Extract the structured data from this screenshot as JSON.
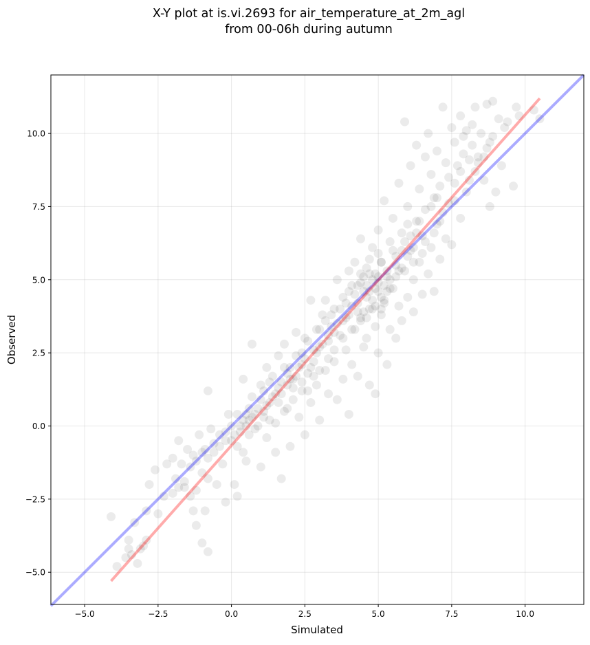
{
  "chart_data": {
    "type": "scatter",
    "title_lines": [
      "X-Y plot at is.vi.2693 for air_temperature_at_2m_agl",
      "from 00-06h during autumn"
    ],
    "xlabel": "Simulated",
    "ylabel": "Observed",
    "xlim": [
      -6.15,
      12.0
    ],
    "ylim": [
      -6.1,
      12.0
    ],
    "x_ticks": [
      -5.0,
      -2.5,
      0.0,
      2.5,
      5.0,
      7.5,
      10.0
    ],
    "x_tick_labels": [
      "−5.0",
      "−2.5",
      "0.0",
      "2.5",
      "5.0",
      "7.5",
      "10.0"
    ],
    "y_ticks": [
      -5.0,
      -2.5,
      0.0,
      2.5,
      5.0,
      7.5,
      10.0
    ],
    "y_tick_labels": [
      "−5.0",
      "−2.5",
      "0.0",
      "2.5",
      "5.0",
      "7.5",
      "10.0"
    ],
    "grid": true,
    "point_color": "#000000",
    "identity_line": {
      "x": [
        -6.15,
        12.0
      ],
      "y": [
        -6.15,
        12.0
      ],
      "color": "#0000ff"
    },
    "regression_line": {
      "x": [
        -4.1,
        10.5
      ],
      "y": [
        -5.3,
        11.2
      ],
      "color": "#ff0000"
    },
    "points": [
      [
        -4.1,
        -3.1
      ],
      [
        -3.9,
        -4.8
      ],
      [
        -3.6,
        -4.5
      ],
      [
        -3.5,
        -3.9
      ],
      [
        -3.5,
        -4.2
      ],
      [
        -3.4,
        -4.4
      ],
      [
        -3.2,
        -4.7
      ],
      [
        -3.1,
        -4.2
      ],
      [
        -3.0,
        -4.1
      ],
      [
        -2.9,
        -3.9
      ],
      [
        -3.3,
        -3.3
      ],
      [
        -2.9,
        -2.9
      ],
      [
        -2.8,
        -2.0
      ],
      [
        -2.6,
        -1.5
      ],
      [
        -2.5,
        -3.0
      ],
      [
        -2.2,
        -1.3
      ],
      [
        -2.0,
        -1.1
      ],
      [
        -1.9,
        -1.8
      ],
      [
        -1.8,
        -0.5
      ],
      [
        -1.7,
        -1.3
      ],
      [
        -1.6,
        -2.1
      ],
      [
        -1.5,
        -0.8
      ],
      [
        -1.4,
        -2.4
      ],
      [
        -1.3,
        -2.9
      ],
      [
        -1.3,
        -1.0
      ],
      [
        -1.2,
        -3.4
      ],
      [
        -1.2,
        -2.2
      ],
      [
        -1.1,
        -0.3
      ],
      [
        -1.0,
        -1.6
      ],
      [
        -1.0,
        -4.0
      ],
      [
        -0.9,
        -0.8
      ],
      [
        -0.9,
        -2.9
      ],
      [
        -0.8,
        -1.8
      ],
      [
        -0.8,
        1.2
      ],
      [
        -0.8,
        -4.3
      ],
      [
        -0.7,
        -0.1
      ],
      [
        -0.6,
        -0.6
      ],
      [
        -0.5,
        -2.0
      ],
      [
        -0.4,
        -0.3
      ],
      [
        -0.3,
        -1.3
      ],
      [
        -0.2,
        -2.6
      ],
      [
        -0.1,
        0.4
      ],
      [
        0.0,
        -0.5
      ],
      [
        0.1,
        -2.0
      ],
      [
        0.2,
        -0.7
      ],
      [
        0.2,
        -2.4
      ],
      [
        0.3,
        0.0
      ],
      [
        0.4,
        -0.9
      ],
      [
        0.4,
        1.6
      ],
      [
        0.5,
        -1.2
      ],
      [
        0.6,
        0.2
      ],
      [
        0.6,
        -0.3
      ],
      [
        0.7,
        1.0
      ],
      [
        0.7,
        2.8
      ],
      [
        0.8,
        -0.1
      ],
      [
        0.9,
        0.6
      ],
      [
        1.0,
        -1.4
      ],
      [
        1.0,
        1.4
      ],
      [
        1.1,
        0.3
      ],
      [
        1.2,
        2.0
      ],
      [
        1.2,
        -0.4
      ],
      [
        1.3,
        0.8
      ],
      [
        1.4,
        1.7
      ],
      [
        1.5,
        0.1
      ],
      [
        1.5,
        -0.9
      ],
      [
        1.6,
        2.4
      ],
      [
        1.7,
        1.1
      ],
      [
        1.7,
        -1.8
      ],
      [
        1.8,
        0.5
      ],
      [
        1.8,
        2.8
      ],
      [
        1.9,
        1.4
      ],
      [
        2.0,
        -0.7
      ],
      [
        2.0,
        2.0
      ],
      [
        2.1,
        0.9
      ],
      [
        2.2,
        3.2
      ],
      [
        2.2,
        1.7
      ],
      [
        2.3,
        0.3
      ],
      [
        2.4,
        2.5
      ],
      [
        2.4,
        1.2
      ],
      [
        2.5,
        3.0
      ],
      [
        2.5,
        -0.3
      ],
      [
        2.6,
        1.8
      ],
      [
        2.7,
        0.8
      ],
      [
        2.7,
        4.3
      ],
      [
        2.8,
        2.2
      ],
      [
        2.9,
        3.3
      ],
      [
        2.9,
        1.4
      ],
      [
        3.0,
        2.7
      ],
      [
        3.0,
        0.2
      ],
      [
        3.1,
        3.8
      ],
      [
        3.2,
        1.9
      ],
      [
        3.2,
        4.3
      ],
      [
        3.3,
        2.9
      ],
      [
        3.3,
        1.1
      ],
      [
        3.4,
        3.4
      ],
      [
        3.5,
        2.2
      ],
      [
        3.5,
        4.0
      ],
      [
        3.6,
        0.9
      ],
      [
        3.6,
        5.0
      ],
      [
        3.7,
        3.1
      ],
      [
        3.8,
        1.6
      ],
      [
        3.8,
        4.4
      ],
      [
        3.9,
        2.6
      ],
      [
        3.9,
        3.7
      ],
      [
        4.0,
        0.4
      ],
      [
        4.0,
        5.3
      ],
      [
        4.1,
        2.1
      ],
      [
        4.1,
        4.1
      ],
      [
        4.2,
        3.3
      ],
      [
        4.3,
        4.8
      ],
      [
        4.3,
        1.7
      ],
      [
        4.4,
        6.4
      ],
      [
        4.4,
        3.6
      ],
      [
        4.5,
        2.7
      ],
      [
        4.5,
        5.1
      ],
      [
        4.6,
        4.4
      ],
      [
        4.6,
        3.0
      ],
      [
        4.7,
        5.7
      ],
      [
        4.7,
        1.4
      ],
      [
        4.8,
        4.0
      ],
      [
        4.8,
        6.1
      ],
      [
        4.9,
        3.4
      ],
      [
        4.9,
        5.2
      ],
      [
        4.9,
        1.1
      ],
      [
        5.0,
        4.6
      ],
      [
        5.0,
        2.5
      ],
      [
        5.0,
        6.7
      ],
      [
        5.1,
        3.8
      ],
      [
        5.1,
        5.6
      ],
      [
        5.2,
        4.3
      ],
      [
        5.2,
        7.7
      ],
      [
        5.3,
        2.1
      ],
      [
        5.3,
        5.1
      ],
      [
        5.4,
        3.3
      ],
      [
        5.4,
        6.3
      ],
      [
        5.5,
        4.7
      ],
      [
        5.5,
        7.1
      ],
      [
        5.6,
        3.0
      ],
      [
        5.6,
        5.8
      ],
      [
        5.7,
        4.1
      ],
      [
        5.7,
        8.3
      ],
      [
        5.8,
        6.6
      ],
      [
        5.8,
        3.6
      ],
      [
        5.9,
        5.3
      ],
      [
        5.9,
        10.4
      ],
      [
        6.0,
        7.5
      ],
      [
        6.0,
        4.4
      ],
      [
        6.1,
        6.0
      ],
      [
        6.1,
        8.9
      ],
      [
        6.2,
        5.0
      ],
      [
        6.2,
        3.9
      ],
      [
        6.3,
        7.0
      ],
      [
        6.3,
        9.6
      ],
      [
        6.4,
        5.6
      ],
      [
        6.4,
        8.1
      ],
      [
        6.5,
        4.5
      ],
      [
        6.5,
        6.5
      ],
      [
        6.6,
        9.2
      ],
      [
        6.6,
        7.4
      ],
      [
        6.7,
        5.2
      ],
      [
        6.7,
        10.0
      ],
      [
        6.8,
        8.6
      ],
      [
        6.8,
        6.1
      ],
      [
        6.9,
        7.8
      ],
      [
        6.9,
        4.6
      ],
      [
        7.0,
        9.4
      ],
      [
        7.0,
        6.9
      ],
      [
        7.1,
        8.2
      ],
      [
        7.1,
        5.7
      ],
      [
        7.2,
        10.9
      ],
      [
        7.2,
        7.3
      ],
      [
        7.3,
        9.0
      ],
      [
        7.3,
        6.4
      ],
      [
        7.4,
        8.5
      ],
      [
        7.5,
        6.2
      ],
      [
        7.5,
        10.2
      ],
      [
        7.6,
        7.7
      ],
      [
        7.6,
        9.7
      ],
      [
        7.7,
        8.9
      ],
      [
        7.8,
        7.1
      ],
      [
        7.8,
        10.6
      ],
      [
        7.9,
        9.3
      ],
      [
        8.0,
        8.0
      ],
      [
        8.0,
        10.1
      ],
      [
        8.1,
        9.1
      ],
      [
        8.2,
        9.6
      ],
      [
        8.3,
        8.7
      ],
      [
        8.3,
        10.9
      ],
      [
        8.4,
        9.2
      ],
      [
        8.5,
        10.0
      ],
      [
        8.6,
        8.4
      ],
      [
        8.7,
        11.0
      ],
      [
        8.8,
        7.5
      ],
      [
        8.8,
        9.7
      ],
      [
        8.9,
        11.1
      ],
      [
        9.0,
        8.0
      ],
      [
        9.1,
        10.5
      ],
      [
        9.2,
        8.9
      ],
      [
        9.3,
        10.2
      ],
      [
        9.6,
        8.2
      ],
      [
        9.7,
        10.9
      ],
      [
        9.8,
        10.6
      ],
      [
        10.5,
        10.5
      ],
      [
        10.3,
        10.8
      ],
      [
        9.4,
        10.4
      ],
      [
        4.4,
        4.9
      ],
      [
        4.6,
        4.8
      ],
      [
        4.8,
        5.0
      ],
      [
        5.0,
        5.1
      ],
      [
        5.2,
        4.8
      ],
      [
        4.7,
        4.6
      ],
      [
        4.9,
        4.7
      ],
      [
        5.1,
        4.4
      ],
      [
        4.5,
        4.6
      ],
      [
        5.3,
        5.3
      ],
      [
        4.2,
        4.5
      ],
      [
        4.3,
        4.2
      ],
      [
        4.6,
        5.4
      ],
      [
        4.8,
        4.3
      ],
      [
        5.0,
        4.9
      ],
      [
        5.1,
        5.6
      ],
      [
        4.4,
        5.2
      ],
      [
        4.0,
        4.6
      ],
      [
        5.4,
        5.0
      ],
      [
        5.2,
        4.2
      ],
      [
        3.9,
        4.2
      ],
      [
        4.1,
        4.8
      ],
      [
        4.7,
        5.2
      ],
      [
        4.9,
        4.1
      ],
      [
        5.3,
        4.6
      ],
      [
        4.5,
        3.9
      ],
      [
        5.6,
        5.5
      ],
      [
        5.5,
        6.0
      ],
      [
        4.2,
        5.6
      ],
      [
        3.8,
        3.6
      ],
      [
        5.0,
        5.9
      ],
      [
        5.7,
        5.3
      ],
      [
        4.6,
        3.7
      ],
      [
        4.3,
        3.9
      ],
      [
        5.8,
        6.0
      ],
      [
        6.0,
        5.8
      ],
      [
        5.9,
        6.3
      ],
      [
        6.1,
        6.5
      ],
      [
        6.2,
        6.1
      ],
      [
        6.3,
        6.6
      ],
      [
        5.4,
        4.7
      ],
      [
        5.6,
        5.1
      ],
      [
        5.1,
        4.0
      ],
      [
        4.0,
        3.8
      ],
      [
        3.7,
        4.0
      ],
      [
        3.6,
        3.5
      ],
      [
        3.4,
        3.8
      ],
      [
        3.3,
        3.1
      ],
      [
        3.0,
        3.3
      ],
      [
        2.8,
        2.6
      ],
      [
        2.6,
        2.9
      ],
      [
        2.4,
        2.1
      ],
      [
        2.2,
        2.4
      ],
      [
        2.0,
        1.6
      ],
      [
        1.8,
        2.0
      ],
      [
        1.6,
        1.3
      ],
      [
        1.4,
        1.0
      ],
      [
        1.2,
        0.7
      ],
      [
        1.0,
        0.9
      ],
      [
        0.8,
        0.4
      ],
      [
        0.6,
        0.6
      ],
      [
        0.4,
        0.2
      ],
      [
        0.2,
        0.4
      ],
      [
        0.0,
        0.0
      ],
      [
        -0.2,
        -0.2
      ],
      [
        0.5,
        0.0
      ],
      [
        0.7,
        0.3
      ],
      [
        1.1,
        1.2
      ],
      [
        1.3,
        1.5
      ],
      [
        1.5,
        1.1
      ],
      [
        1.7,
        1.5
      ],
      [
        1.9,
        1.8
      ],
      [
        2.1,
        1.6
      ],
      [
        2.3,
        2.0
      ],
      [
        2.5,
        2.3
      ],
      [
        2.7,
        2.0
      ],
      [
        2.9,
        2.5
      ],
      [
        3.1,
        2.8
      ],
      [
        3.5,
        3.2
      ],
      [
        3.2,
        3.6
      ],
      [
        6.4,
        7.0
      ],
      [
        6.6,
        6.3
      ],
      [
        6.8,
        7.5
      ],
      [
        7.0,
        7.8
      ],
      [
        6.5,
        5.9
      ],
      [
        6.0,
        6.9
      ],
      [
        5.8,
        5.4
      ],
      [
        6.2,
        5.6
      ],
      [
        7.1,
        7.0
      ],
      [
        6.9,
        6.6
      ],
      [
        7.4,
        7.6
      ],
      [
        7.6,
        8.3
      ],
      [
        7.8,
        8.7
      ],
      [
        8.1,
        8.4
      ],
      [
        8.4,
        9.0
      ],
      [
        8.6,
        9.2
      ],
      [
        8.2,
        10.3
      ],
      [
        7.9,
        9.9
      ],
      [
        8.7,
        9.5
      ],
      [
        8.9,
        9.9
      ],
      [
        -2.3,
        -2.4
      ],
      [
        -2.0,
        -2.3
      ],
      [
        -1.8,
        -2.1
      ],
      [
        -1.6,
        -1.9
      ],
      [
        -1.4,
        -1.4
      ],
      [
        -1.2,
        -1.2
      ],
      [
        -1.0,
        -0.9
      ],
      [
        -0.8,
        -1.1
      ],
      [
        -0.6,
        -0.9
      ],
      [
        -0.4,
        -0.7
      ],
      [
        -0.2,
        -0.5
      ],
      [
        0.1,
        -0.3
      ],
      [
        0.3,
        -0.2
      ],
      [
        0.5,
        0.4
      ],
      [
        0.9,
        0.0
      ],
      [
        1.1,
        0.5
      ],
      [
        1.3,
        0.2
      ],
      [
        1.6,
        0.8
      ],
      [
        1.9,
        0.6
      ],
      [
        2.1,
        1.3
      ],
      [
        2.4,
        1.5
      ],
      [
        2.6,
        1.2
      ],
      [
        2.8,
        1.7
      ],
      [
        3.0,
        1.9
      ],
      [
        3.3,
        2.3
      ],
      [
        3.5,
        2.6
      ],
      [
        3.8,
        3.0
      ],
      [
        4.1,
        3.3
      ],
      [
        4.4,
        3.7
      ],
      [
        4.7,
        4.0
      ]
    ]
  }
}
